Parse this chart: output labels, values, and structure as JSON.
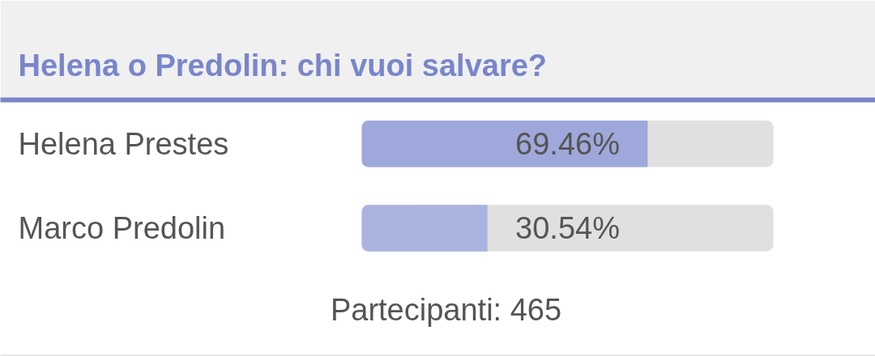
{
  "chart_data": {
    "type": "bar",
    "orientation": "horizontal",
    "title": "Helena o Predolin: chi vuoi salvare?",
    "categories": [
      "Helena Prestes",
      "Marco Predolin"
    ],
    "values": [
      69.46,
      30.54
    ],
    "colors": [
      "#9fa8da",
      "#aab3df"
    ],
    "value_labels": [
      "69.46%",
      "30.54%"
    ],
    "xlim": [
      0,
      100
    ],
    "annotations": [
      "Partecipanti: 465"
    ]
  }
}
